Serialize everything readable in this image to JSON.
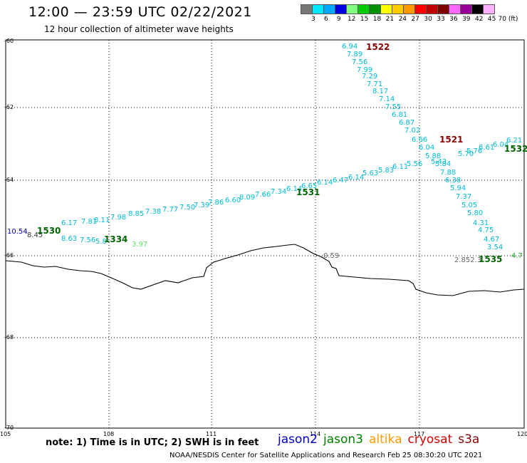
{
  "title": "12:00 — 23:59 UTC 02/22/2021",
  "subtitle": "12 hour collection of altimeter wave heights",
  "colorbar": {
    "labels": [
      "3",
      "6",
      "9",
      "12",
      "15",
      "18",
      "21",
      "24",
      "27",
      "30",
      "33",
      "36",
      "39",
      "42",
      "45",
      "70 (ft)"
    ],
    "colors": [
      "#777777",
      "#00e8ff",
      "#00a8ff",
      "#0000e0",
      "#80ff80",
      "#00cc00",
      "#009000",
      "#ffff00",
      "#ffcc00",
      "#ff9900",
      "#ff0000",
      "#c00000",
      "#800000",
      "#ff66ff",
      "#990099",
      "#000000",
      "#ffb0ff"
    ]
  },
  "axes": {
    "lat_labels": [
      "-60",
      "-62",
      "-64",
      "-66",
      "-68",
      "-70"
    ],
    "lon_labels": [
      "105",
      "108",
      "111",
      "114",
      "117",
      "120"
    ]
  },
  "tracks": {
    "t1522": {
      "label": "1522",
      "label_color": "#8b0000",
      "values": [
        "6.94",
        "7.89",
        "7.56",
        "7.99",
        "7.29",
        "7.71",
        "8.17",
        "7.14",
        "7.55",
        "6.81",
        "6.87",
        "7.02",
        "6.66",
        "6.04",
        "5.88",
        "5.43",
        "5.84",
        "7.88",
        "6.38",
        "5.94",
        "7.37",
        "5.05",
        "5.80",
        "4.31",
        "4.75",
        "4.67",
        "3.54"
      ]
    },
    "t1521": {
      "label": "1521",
      "label_color": "#8b0000"
    },
    "t1531": {
      "label": "1531",
      "label_color": "#006400",
      "values": [
        "6.17",
        "7.81",
        "8.11",
        "7.98",
        "8.85",
        "7.38",
        "7.77",
        "7.50",
        "7.39",
        "7.86",
        "6.60",
        "8.09",
        "7.66",
        "7.34",
        "6.14",
        "6.65",
        "6.14",
        "6.47",
        "6.14",
        "5.63",
        "5.83",
        "6.11",
        "5.56",
        "5.70",
        "5.76",
        "6.61",
        "6.04",
        "6.21"
      ]
    },
    "t1530": {
      "label": "1530",
      "label_color": "#006400"
    },
    "t1532": {
      "label": "1532",
      "label_color": "#006400"
    },
    "t1334": {
      "label": "1334",
      "label_color": "#006400",
      "values": [
        "8.63",
        "7.56",
        "5.8",
        "3.97"
      ]
    },
    "t1535": {
      "label": "1535",
      "label_color": "#006400"
    },
    "misc": {
      "west_blue": "10.54",
      "west_dark": "8.45",
      "mid_gray": "0.59",
      "east_gray": "2.852.3",
      "east_green": "4.7"
    }
  },
  "footnote": "note:  1) Time is in UTC;  2) SWH is in feet",
  "legend": [
    {
      "name": "jason2",
      "color": "#0000cc"
    },
    {
      "name": "jason3",
      "color": "#008000"
    },
    {
      "name": "altika",
      "color": "#ff9900"
    },
    {
      "name": "cryosat",
      "color": "#dd0000"
    },
    {
      "name": "s3a",
      "color": "#8b0000"
    }
  ],
  "credit": "NOAA/NESDIS Center for Satellite Applications and Research    Feb 25 08:30:20 UTC 2021"
}
